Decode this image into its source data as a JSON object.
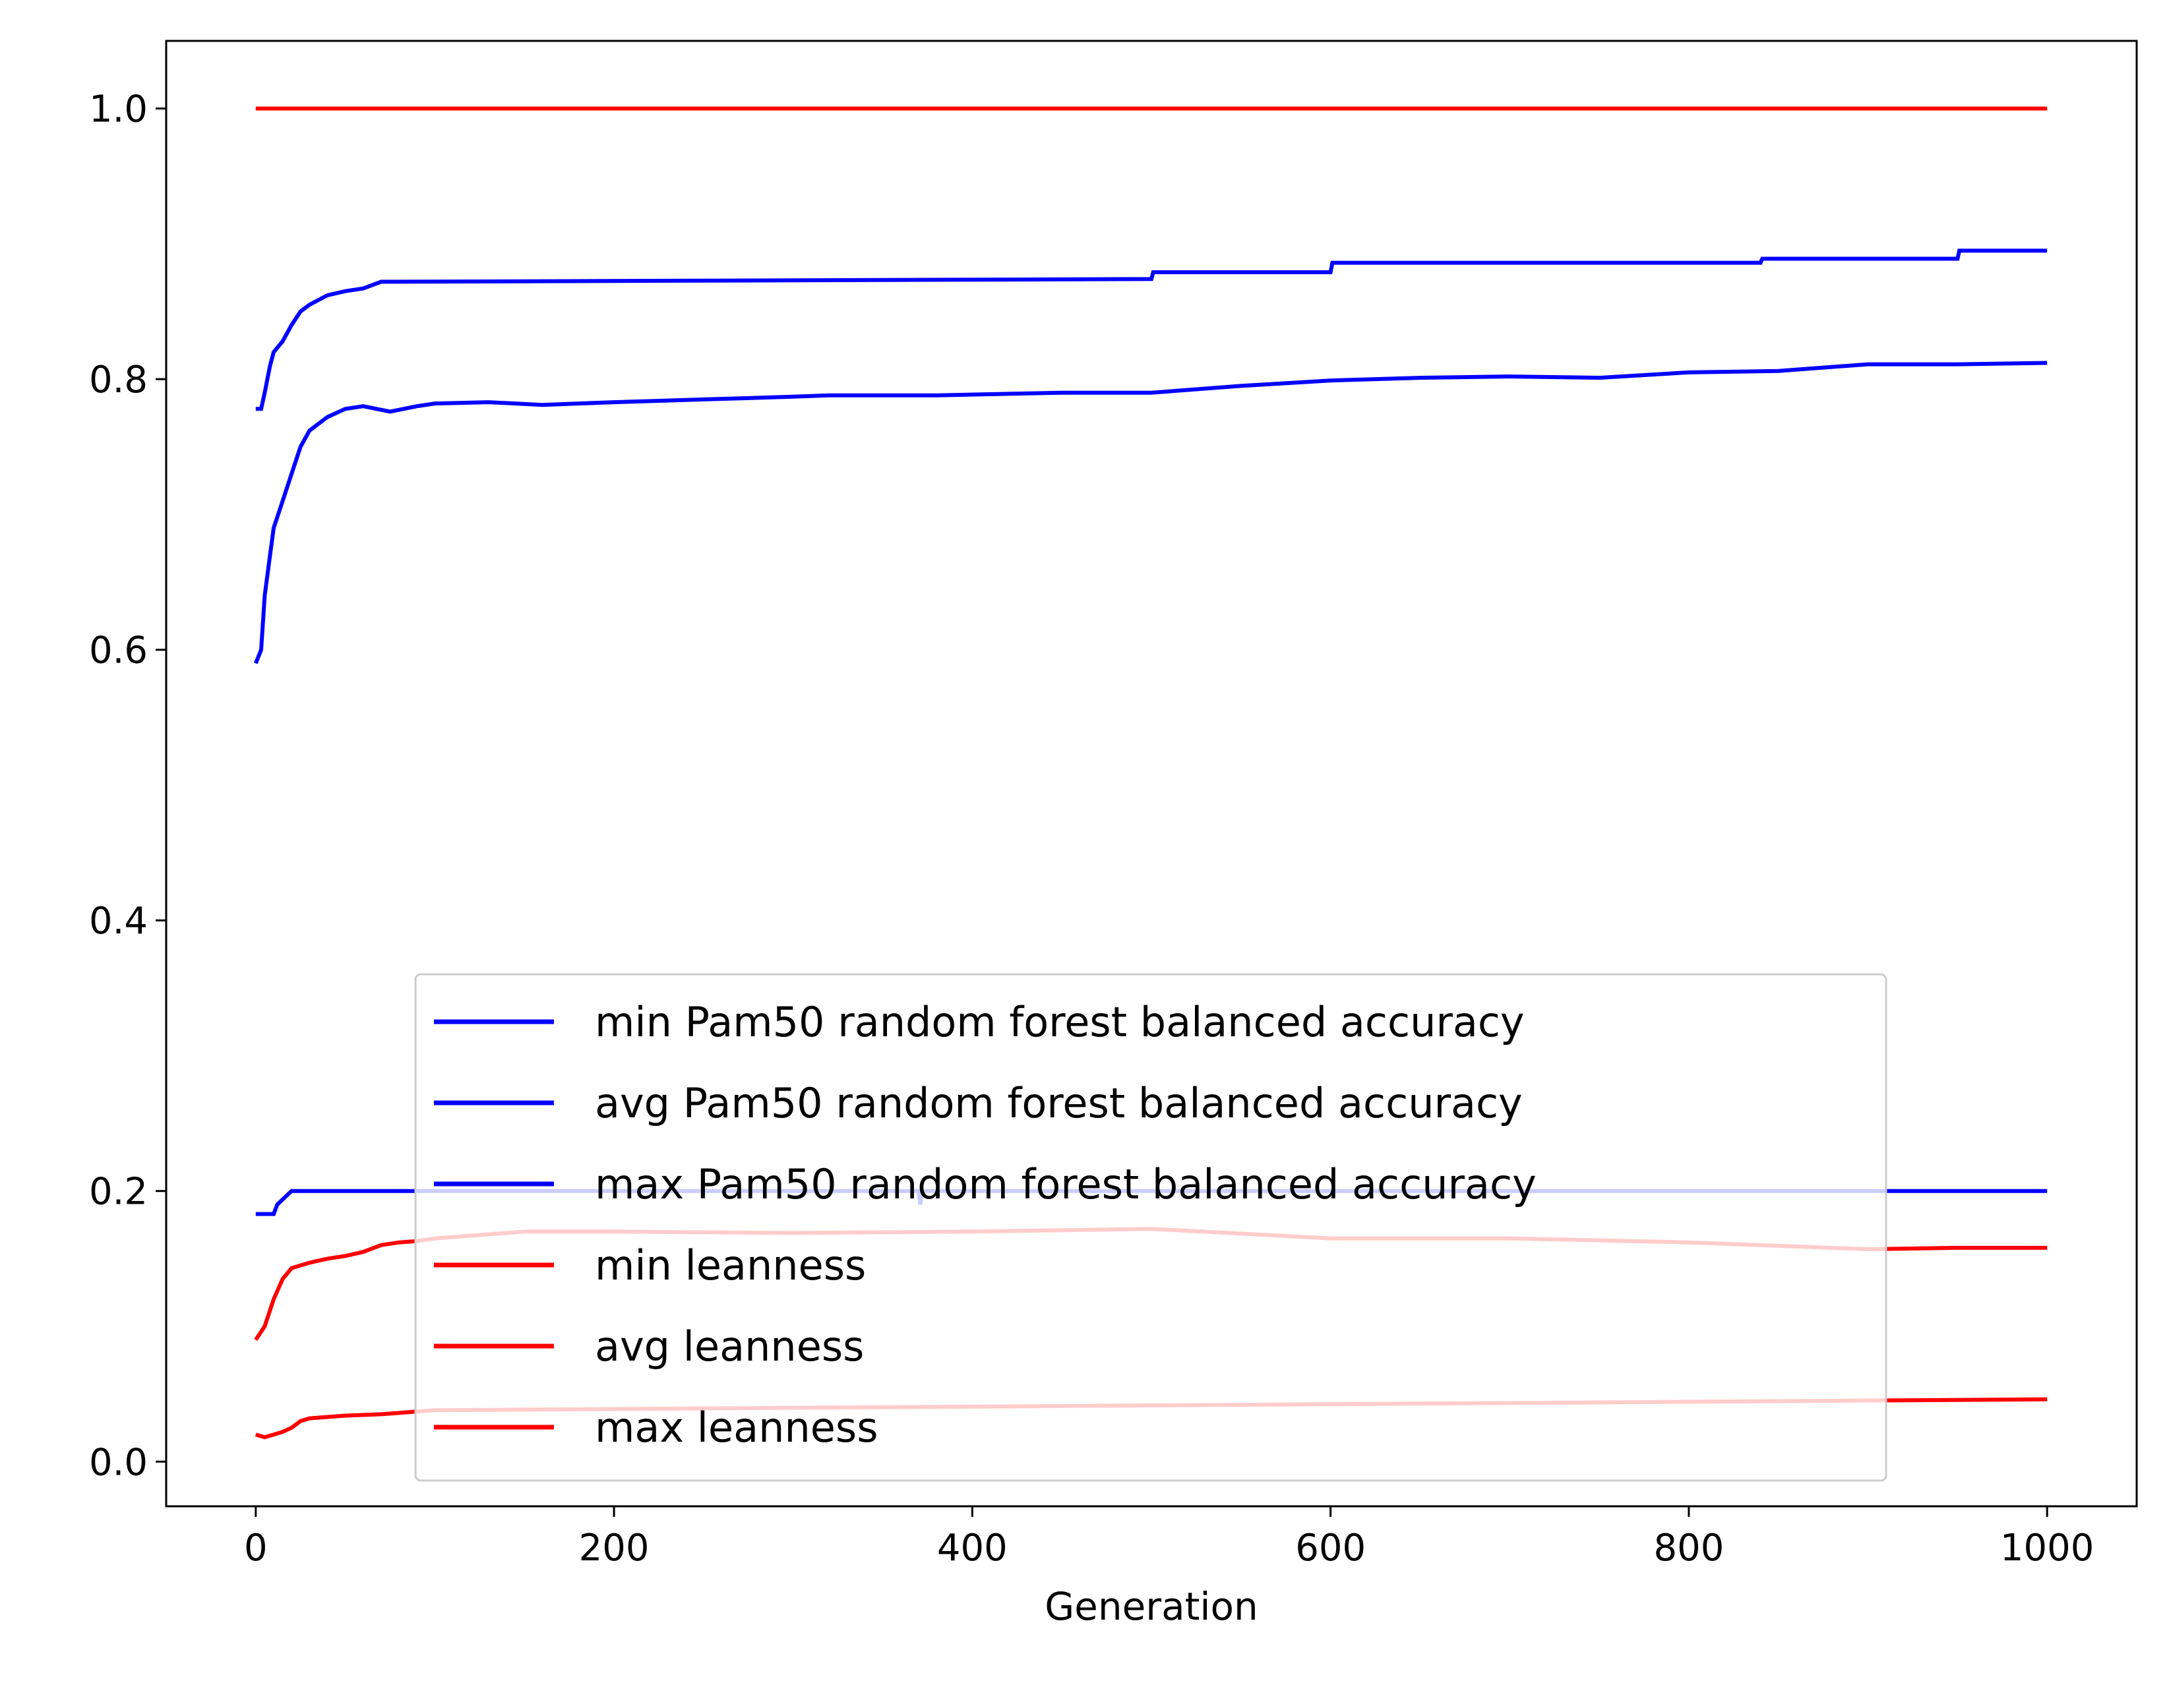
{
  "chart_data": {
    "type": "line",
    "title": "",
    "xlabel": "Generation",
    "ylabel": "",
    "xlim": [
      -50,
      1050
    ],
    "ylim": [
      -0.033,
      1.05
    ],
    "xticks": [
      0,
      200,
      400,
      600,
      800,
      1000
    ],
    "xtick_labels": [
      "0",
      "200",
      "400",
      "600",
      "800",
      "1000"
    ],
    "yticks": [
      0.0,
      0.2,
      0.4,
      0.6,
      0.8,
      1.0
    ],
    "ytick_labels": [
      "0.0",
      "0.2",
      "0.4",
      "0.6",
      "0.8",
      "1.0"
    ],
    "grid": false,
    "legend_position": "lower-center",
    "legend_alpha": 0.8,
    "series": [
      {
        "name": "min Pam50 random forest balanced accuracy",
        "color": "#0000ff",
        "legend_color": "#0000ff",
        "x": [
          0,
          5,
          7,
          10,
          12,
          20,
          30,
          40,
          50,
          70,
          370,
          371,
          372,
          373,
          1000
        ],
        "y": [
          0.183,
          0.183,
          0.183,
          0.183,
          0.19,
          0.2,
          0.2,
          0.2,
          0.2,
          0.2,
          0.2,
          0.19,
          0.2,
          0.2,
          0.2
        ]
      },
      {
        "name": "avg Pam50 random forest balanced accuracy",
        "color": "#0000ff",
        "legend_color": "#0000ff",
        "x": [
          0,
          3,
          5,
          8,
          10,
          15,
          20,
          25,
          30,
          40,
          50,
          60,
          75,
          90,
          100,
          130,
          160,
          200,
          250,
          300,
          320,
          380,
          450,
          500,
          550,
          600,
          650,
          700,
          750,
          800,
          850,
          900,
          950,
          1000
        ],
        "y": [
          0.59,
          0.6,
          0.64,
          0.67,
          0.69,
          0.71,
          0.73,
          0.75,
          0.762,
          0.772,
          0.778,
          0.78,
          0.776,
          0.78,
          0.782,
          0.783,
          0.781,
          0.783,
          0.785,
          0.787,
          0.788,
          0.788,
          0.79,
          0.79,
          0.795,
          0.799,
          0.801,
          0.802,
          0.801,
          0.805,
          0.806,
          0.811,
          0.811,
          0.812
        ]
      },
      {
        "name": "max Pam50 random forest balanced accuracy",
        "color": "#0000ff",
        "legend_color": "#0000ff",
        "x": [
          0,
          3,
          5,
          8,
          10,
          15,
          20,
          25,
          30,
          40,
          50,
          60,
          70,
          80,
          500,
          501,
          600,
          601,
          840,
          841,
          950,
          951,
          1000
        ],
        "y": [
          0.778,
          0.778,
          0.79,
          0.81,
          0.82,
          0.828,
          0.84,
          0.85,
          0.855,
          0.862,
          0.865,
          0.867,
          0.872,
          0.872,
          0.874,
          0.879,
          0.879,
          0.886,
          0.886,
          0.889,
          0.889,
          0.895,
          0.895
        ]
      },
      {
        "name": "min leanness",
        "color": "#ff0000",
        "legend_color": "#ff0000",
        "x": [
          0,
          5,
          10,
          15,
          20,
          25,
          30,
          40,
          50,
          70,
          80,
          90,
          100,
          1000
        ],
        "y": [
          0.02,
          0.018,
          0.02,
          0.022,
          0.025,
          0.03,
          0.032,
          0.033,
          0.034,
          0.035,
          0.036,
          0.037,
          0.038,
          0.046
        ]
      },
      {
        "name": "avg leanness",
        "color": "#ff0000",
        "legend_color": "#ff0000",
        "x": [
          0,
          5,
          10,
          15,
          20,
          30,
          40,
          50,
          60,
          70,
          80,
          90,
          100,
          150,
          200,
          300,
          400,
          500,
          600,
          700,
          800,
          900,
          950,
          1000
        ],
        "y": [
          0.09,
          0.1,
          0.12,
          0.135,
          0.143,
          0.147,
          0.15,
          0.152,
          0.155,
          0.16,
          0.162,
          0.163,
          0.165,
          0.17,
          0.17,
          0.169,
          0.17,
          0.172,
          0.165,
          0.165,
          0.162,
          0.157,
          0.158,
          0.158
        ]
      },
      {
        "name": "max leanness",
        "color": "#ff0000",
        "legend_color": "#ff0000",
        "x": [
          0,
          1000
        ],
        "y": [
          1.0,
          1.0
        ]
      }
    ]
  }
}
